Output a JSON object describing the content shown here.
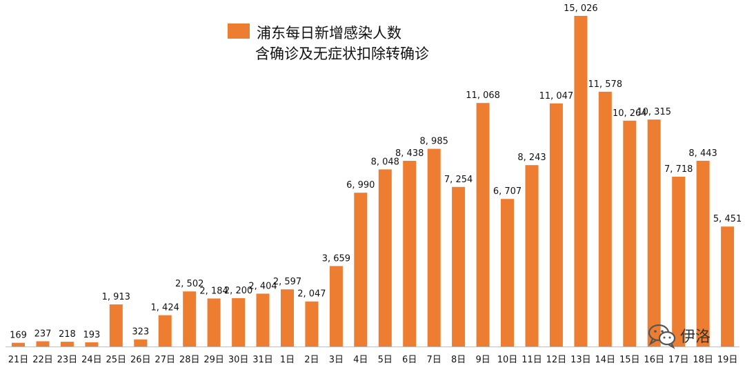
{
  "colors": {
    "bar": "#ED7D31",
    "text": "#111111"
  },
  "legend": {
    "line1": "浦东每日新增感染人数",
    "line2": "含确诊及无症状扣除转确诊"
  },
  "watermark": {
    "text": "伊洛",
    "icon": "wechat-icon"
  },
  "chart_data": {
    "type": "bar",
    "categories": [
      "21日",
      "22日",
      "23日",
      "24日",
      "25日",
      "26日",
      "27日",
      "28日",
      "29日",
      "30日",
      "31日",
      "1日",
      "2日",
      "3日",
      "4日",
      "5日",
      "6日",
      "7日",
      "8日",
      "9日",
      "10日",
      "11日",
      "12日",
      "13日",
      "14日",
      "15日",
      "16日",
      "17日",
      "18日",
      "19日"
    ],
    "values": [
      169,
      237,
      218,
      193,
      1913,
      323,
      1424,
      2502,
      2184,
      2200,
      2404,
      2597,
      2047,
      3659,
      6990,
      8048,
      8438,
      8985,
      7254,
      11068,
      6707,
      8243,
      11047,
      15026,
      11578,
      10264,
      10315,
      7718,
      8443,
      5451
    ],
    "value_labels": [
      "169",
      "237",
      "218",
      "193",
      "1, 913",
      "323",
      "1, 424",
      "2, 502",
      "2, 184",
      "2, 200",
      "2, 404",
      "2, 597",
      "2, 047",
      "3, 659",
      "6, 990",
      "8, 048",
      "8, 438",
      "8, 985",
      "7, 254",
      "11, 068",
      "6, 707",
      "8, 243",
      "11, 047",
      "15, 026",
      "11, 578",
      "10, 264",
      "10, 315",
      "7, 718",
      "8, 443",
      "5, 451"
    ],
    "series": [
      {
        "name": "浦东每日新增感染人数 含确诊及无症状扣除转确诊"
      }
    ],
    "ylim": [
      0,
      15026
    ],
    "grid": false,
    "legend_position": "top-center"
  }
}
